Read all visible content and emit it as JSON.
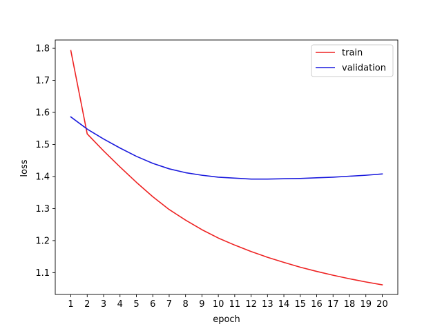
{
  "chart_data": {
    "type": "line",
    "title": "",
    "xlabel": "epoch",
    "ylabel": "loss",
    "xlim": [
      0.05,
      20.95
    ],
    "ylim": [
      1.032,
      1.826
    ],
    "xticks": [
      1,
      2,
      3,
      4,
      5,
      6,
      7,
      8,
      9,
      10,
      11,
      12,
      13,
      14,
      15,
      16,
      17,
      18,
      19,
      20
    ],
    "yticks": [
      1.1,
      1.2,
      1.3,
      1.4,
      1.5,
      1.6,
      1.7,
      1.8
    ],
    "grid": false,
    "legend_position": "top-right",
    "x": [
      1,
      2,
      3,
      4,
      5,
      6,
      7,
      8,
      9,
      10,
      11,
      12,
      13,
      14,
      15,
      16,
      17,
      18,
      19,
      20
    ],
    "series": [
      {
        "name": "train",
        "color": "#ee2222",
        "values": [
          1.793,
          1.533,
          1.48,
          1.43,
          1.382,
          1.337,
          1.297,
          1.264,
          1.234,
          1.208,
          1.186,
          1.166,
          1.148,
          1.132,
          1.117,
          1.104,
          1.092,
          1.081,
          1.071,
          1.062
        ]
      },
      {
        "name": "validation",
        "color": "#1a1add",
        "values": [
          1.586,
          1.548,
          1.517,
          1.489,
          1.463,
          1.441,
          1.424,
          1.412,
          1.404,
          1.398,
          1.395,
          1.392,
          1.392,
          1.393,
          1.394,
          1.396,
          1.398,
          1.401,
          1.404,
          1.408
        ]
      }
    ]
  }
}
